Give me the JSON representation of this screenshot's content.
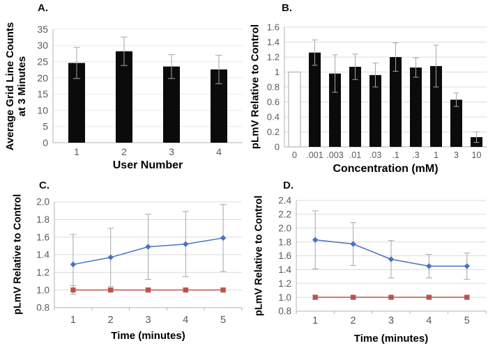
{
  "figure": {
    "background": "#ffffff"
  },
  "colors": {
    "bar_fill": "#0b0b0b",
    "open_bar_fill": "#ffffff",
    "open_bar_stroke": "#a6a6a6",
    "error_bar": "#a6a6a6",
    "gridline": "#dcdcdc",
    "gridline_faint": "#e7e7e7",
    "axis_line": "#b3b3b3",
    "tick_label": "#595959",
    "axis_title": "#000000",
    "series_blue": "#4472c4",
    "series_red": "#c0504d"
  },
  "chart_data": [
    {
      "panel": "A.",
      "type": "bar",
      "xlabel": "User Number",
      "ylabel": "Average Grid Line Counts\nat 3 Minutes",
      "categories": [
        "1",
        "2",
        "3",
        "4"
      ],
      "values": [
        24.6,
        28.2,
        23.5,
        22.6
      ],
      "errors": [
        4.8,
        4.4,
        3.7,
        4.4
      ],
      "ylim": [
        0,
        35
      ],
      "ytick_step": 5,
      "ytick_labels": [
        "0",
        "5",
        "10",
        "15",
        "20",
        "25",
        "30",
        "35"
      ],
      "grid": true,
      "legend": "none"
    },
    {
      "panel": "B.",
      "type": "bar",
      "xlabel": "Concentration (mM)",
      "ylabel": "pLmV Relative to Control",
      "categories": [
        "0",
        ".001",
        ".003",
        ".01",
        ".03",
        ".1",
        ".3",
        "1",
        "3",
        "10"
      ],
      "values": [
        1.0,
        1.26,
        0.98,
        1.07,
        0.96,
        1.2,
        1.06,
        1.08,
        0.63,
        0.13
      ],
      "errors": [
        0,
        0.17,
        0.25,
        0.17,
        0.16,
        0.19,
        0.13,
        0.28,
        0.09,
        0.07
      ],
      "open_bars": [
        0
      ],
      "ylim": [
        0,
        1.6
      ],
      "ytick_step": 0.2,
      "ytick_labels": [
        "0",
        "0.2",
        "0.4",
        "0.6",
        "0.8",
        "1",
        "1.2",
        "1.4",
        "1.6"
      ],
      "grid": true,
      "legend": "none"
    },
    {
      "panel": "C.",
      "type": "line",
      "xlabel": "Time (minutes)",
      "ylabel": "pLmV Relative to Control",
      "x": [
        1,
        2,
        3,
        4,
        5
      ],
      "series": [
        {
          "name": "blue-diamond",
          "marker": "diamond",
          "color": "#4472c4",
          "values": [
            1.29,
            1.37,
            1.49,
            1.52,
            1.59
          ],
          "errors": [
            0.34,
            0.33,
            0.37,
            0.37,
            0.38
          ]
        },
        {
          "name": "red-square",
          "marker": "square",
          "color": "#c0504d",
          "values": [
            1.0,
            1.0,
            1.0,
            1.0,
            1.0
          ],
          "errors": [
            0.05,
            0.02,
            0.02,
            0.02,
            0.02
          ]
        }
      ],
      "ylim": [
        0.8,
        2.0
      ],
      "ytick_step": 0.2,
      "ytick_labels": [
        "0.8",
        "1.0",
        "1.2",
        "1.4",
        "1.6",
        "1.8",
        "2.0"
      ],
      "grid": true,
      "legend": "none"
    },
    {
      "panel": "D.",
      "type": "line",
      "xlabel": "Time (minutes)",
      "ylabel": "pLmV Relative to Control",
      "x": [
        1,
        2,
        3,
        4,
        5
      ],
      "series": [
        {
          "name": "blue-diamond",
          "marker": "diamond",
          "color": "#4472c4",
          "values": [
            1.83,
            1.77,
            1.55,
            1.45,
            1.45
          ],
          "errors": [
            0.42,
            0.31,
            0.27,
            0.17,
            0.19
          ]
        },
        {
          "name": "red-square",
          "marker": "square",
          "color": "#c0504d",
          "values": [
            1.0,
            1.0,
            1.0,
            1.0,
            1.0
          ],
          "errors": [
            0.03,
            0.02,
            0.02,
            0.02,
            0.02
          ]
        }
      ],
      "ylim": [
        0.8,
        2.4
      ],
      "ytick_step": 0.2,
      "ytick_labels": [
        "0.8",
        "1.0",
        "1.2",
        "1.4",
        "1.6",
        "1.8",
        "2.0",
        "2.2",
        "2.4"
      ],
      "grid": true,
      "legend": "none"
    }
  ]
}
